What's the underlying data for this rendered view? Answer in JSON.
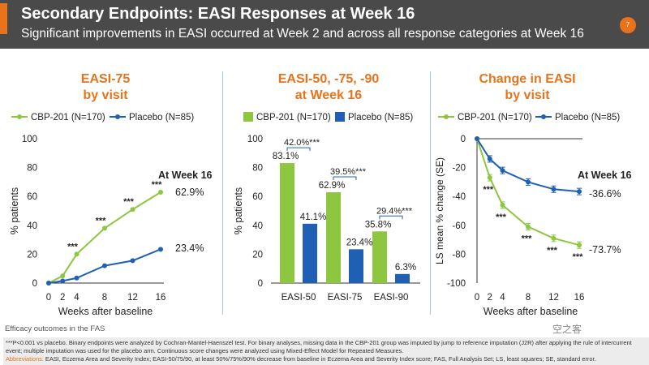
{
  "header": {
    "title": "Secondary Endpoints: EASI Responses at Week 16",
    "subtitle": "Significant improvements in EASI occurred at Week 2 and across all response categories at Week 16",
    "page_number": "7"
  },
  "colors": {
    "cbp": "#8dc63f",
    "placebo": "#1f5fb4",
    "accent": "#e8731a",
    "header_bg": "#4a4a4a"
  },
  "chart_data": [
    {
      "type": "line",
      "title": "EASI-75\nby visit",
      "title_lines": [
        "EASI-75",
        "by visit"
      ],
      "xlabel": "Weeks after baseline",
      "ylabel": "% patients",
      "x": [
        0,
        2,
        4,
        8,
        12,
        16
      ],
      "ylim": [
        0,
        100
      ],
      "yticks": [
        0,
        20,
        40,
        60,
        80,
        100
      ],
      "series": [
        {
          "name": "CBP-201 (N=170)",
          "values": [
            0,
            5,
            20,
            38,
            51,
            62.9
          ]
        },
        {
          "name": "Placebo (N=85)",
          "values": [
            0,
            1.5,
            3.5,
            12,
            15.5,
            23.4
          ]
        }
      ],
      "annotations": {
        "week16_label": "At Week 16",
        "cbp_value_label": "62.9%",
        "placebo_value_label": "23.4%",
        "significance": "***",
        "sig_weeks": [
          4,
          8,
          12,
          16
        ]
      }
    },
    {
      "type": "bar",
      "title_lines": [
        "EASI-50, -75, -90",
        "at Week 16"
      ],
      "ylabel": "% patients",
      "ylim": [
        0,
        100
      ],
      "yticks": [
        0,
        20,
        40,
        60,
        80,
        100
      ],
      "categories": [
        "EASI-50",
        "EASI-75",
        "EASI-90"
      ],
      "series": [
        {
          "name": "CBP-201 (N=170)",
          "values": [
            83.1,
            62.9,
            35.8
          ],
          "labels": [
            "83.1%",
            "62.9%",
            "35.8%"
          ]
        },
        {
          "name": "Placebo (N=85)",
          "values": [
            41.1,
            23.4,
            6.3
          ],
          "labels": [
            "41.1%",
            "23.4%",
            "6.3%"
          ]
        }
      ],
      "differences": [
        "42.0%",
        "39.5%",
        "29.4%"
      ],
      "significance": "***"
    },
    {
      "type": "line",
      "title_lines": [
        "Change in EASI",
        "by visit"
      ],
      "xlabel": "Weeks after baseline",
      "ylabel": "LS mean % change (SE)",
      "x": [
        0,
        2,
        4,
        8,
        12,
        16
      ],
      "ylim": [
        -100,
        0
      ],
      "yticks": [
        0,
        -20,
        -40,
        -60,
        -80,
        -100
      ],
      "series": [
        {
          "name": "CBP-201 (N=170)",
          "values": [
            0,
            -27,
            -46,
            -61,
            -69,
            -73.7
          ]
        },
        {
          "name": "Placebo (N=85)",
          "values": [
            0,
            -14,
            -22,
            -30,
            -35,
            -36.6
          ]
        }
      ],
      "annotations": {
        "week16_label": "At Week 16",
        "cbp_value_label": "-73.7%",
        "placebo_value_label": "-36.6%",
        "significance": "***",
        "sig_weeks": [
          2,
          4,
          8,
          12,
          16
        ]
      }
    }
  ],
  "footer": {
    "caption": "Efficacy outcomes in the FAS",
    "footnote": "***P<0.001 vs placebo. Binary endpoints were analyzed by Cochran-Mantel-Haenszel test. For binary analyses, missing data in the CBP-201 group was imputed by jump to reference imputation (J2R) after applying the rule of intercurrent event; multiple imputation was used for the placebo arm. Continuous score changes were analyzed using Mixed-Effect Model for Repeated Measures.",
    "abbreviations_label": "Abbreviations:",
    "abbreviations": " EASI, Eczema Area and Severity Index; EASI-50/75/90, at least 50%/75%/90% decrease from baseline in Eczema Area and Severity Index score; FAS, Full Analysis Set; LS, least squares; SE, standard error.",
    "watermark": "空之客"
  }
}
